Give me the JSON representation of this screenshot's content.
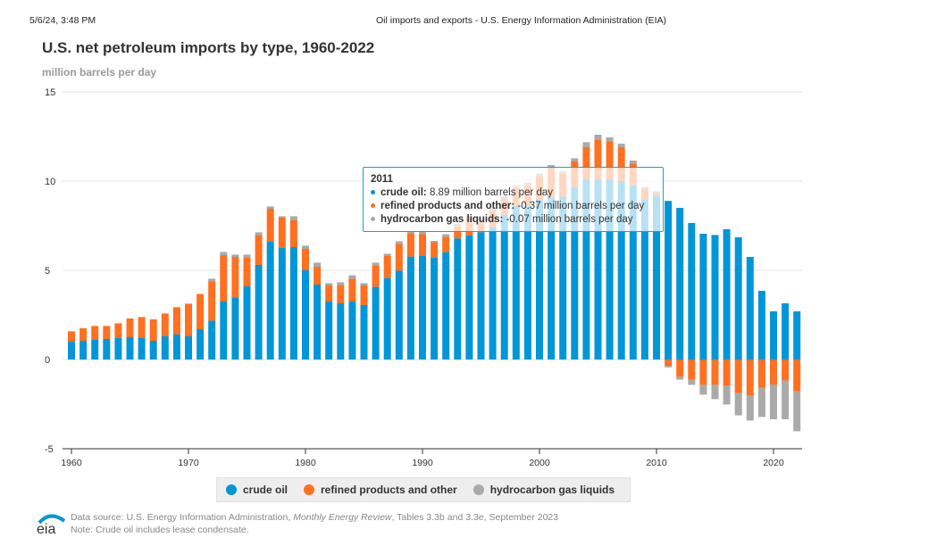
{
  "header": {
    "timestamp": "5/6/24, 3:48 PM",
    "page_title": "Oil imports and exports - U.S. Energy Information Administration (EIA)"
  },
  "chart_data": {
    "type": "bar",
    "stacked": true,
    "title": "U.S. net petroleum imports by type, 1960-2022",
    "ylabel": "million barrels per day",
    "ylim": [
      -5,
      15
    ],
    "yticks": [
      "15",
      "10",
      "5",
      "0",
      "-5"
    ],
    "xticks": [
      "1960",
      "1970",
      "1980",
      "1990",
      "2000",
      "2010",
      "2020"
    ],
    "grid": true,
    "legend_position": "bottom",
    "categories": [
      1960,
      1961,
      1962,
      1963,
      1964,
      1965,
      1966,
      1967,
      1968,
      1969,
      1970,
      1971,
      1972,
      1973,
      1974,
      1975,
      1976,
      1977,
      1978,
      1979,
      1980,
      1981,
      1982,
      1983,
      1984,
      1985,
      1986,
      1987,
      1988,
      1989,
      1990,
      1991,
      1992,
      1993,
      1994,
      1995,
      1996,
      1997,
      1998,
      1999,
      2000,
      2001,
      2002,
      2003,
      2004,
      2005,
      2006,
      2007,
      2008,
      2009,
      2010,
      2011,
      2012,
      2013,
      2014,
      2015,
      2016,
      2017,
      2018,
      2019,
      2020,
      2021,
      2022
    ],
    "series": [
      {
        "name": "crude oil",
        "color": "#0096d7",
        "values": [
          1.0,
          1.05,
          1.1,
          1.15,
          1.2,
          1.25,
          1.2,
          1.05,
          1.3,
          1.4,
          1.3,
          1.7,
          2.18,
          3.25,
          3.48,
          4.1,
          5.3,
          6.6,
          6.25,
          6.3,
          5.0,
          4.2,
          3.25,
          3.15,
          3.25,
          3.05,
          4.07,
          4.57,
          4.98,
          5.77,
          5.82,
          5.72,
          6.02,
          6.79,
          6.96,
          7.14,
          7.4,
          8.12,
          8.6,
          8.61,
          8.99,
          9.08,
          9.13,
          9.65,
          10.1,
          10.1,
          10.1,
          10.0,
          9.76,
          8.97,
          9.17,
          8.89,
          8.5,
          7.65,
          7.05,
          6.98,
          7.3,
          6.85,
          5.75,
          3.85,
          2.7,
          3.15,
          2.7
        ]
      },
      {
        "name": "refined products and other",
        "color": "#ff7020",
        "values": [
          0.58,
          0.7,
          0.78,
          0.73,
          0.83,
          1.05,
          1.18,
          1.2,
          1.28,
          1.53,
          1.83,
          1.97,
          2.2,
          2.6,
          2.27,
          1.6,
          1.65,
          1.85,
          1.7,
          1.5,
          1.2,
          1.0,
          0.9,
          1.03,
          1.28,
          1.1,
          1.2,
          1.25,
          1.5,
          1.31,
          1.21,
          0.85,
          0.85,
          0.68,
          0.94,
          0.6,
          0.95,
          0.89,
          1.01,
          1.15,
          1.28,
          1.67,
          1.27,
          1.47,
          1.8,
          2.22,
          2.13,
          1.9,
          1.22,
          0.6,
          0.2,
          -0.37,
          -0.97,
          -1.13,
          -1.42,
          -1.42,
          -1.47,
          -1.88,
          -2.02,
          -1.58,
          -1.42,
          -1.18,
          -1.78
        ]
      },
      {
        "name": "hydrocarbon gas liquids",
        "color": "#aaaaaa",
        "values": [
          0,
          0,
          0,
          0,
          0,
          0,
          0,
          0,
          0,
          0,
          0,
          0,
          0.15,
          0.18,
          0.13,
          0.18,
          0.18,
          0.13,
          0.08,
          0.23,
          0.18,
          0.23,
          0.13,
          0.15,
          0.19,
          0.13,
          0.16,
          0.11,
          0.15,
          0.12,
          0.13,
          0.08,
          0.15,
          0.15,
          0.15,
          0.15,
          0.15,
          0.15,
          0.15,
          0.15,
          0.15,
          0.15,
          0.15,
          0.16,
          0.28,
          0.28,
          0.22,
          0.2,
          0.17,
          0.1,
          0.07,
          -0.07,
          -0.16,
          -0.29,
          -0.55,
          -0.8,
          -1.05,
          -1.25,
          -1.4,
          -1.64,
          -1.93,
          -2.17,
          -2.24
        ]
      }
    ],
    "tooltip": {
      "year": "2011",
      "rows": [
        {
          "label": "crude oil:",
          "value": "8.89 million barrels per day",
          "color": "#0096d7"
        },
        {
          "label": "refined products and other:",
          "value": "-0.37 million barrels per day",
          "color": "#ff7020"
        },
        {
          "label": "hydrocarbon gas liquids:",
          "value": "-0.07 million barrels per day",
          "color": "#aaaaaa"
        }
      ]
    }
  },
  "footer": {
    "source_prefix": "Data source: U.S. Energy Information Administration, ",
    "source_italic": "Monthly Energy Review",
    "source_suffix": ", Tables 3.3b and 3.3e, September 2023",
    "note": "Note: Crude oil includes lease condensate.",
    "logo_text": "eia"
  }
}
